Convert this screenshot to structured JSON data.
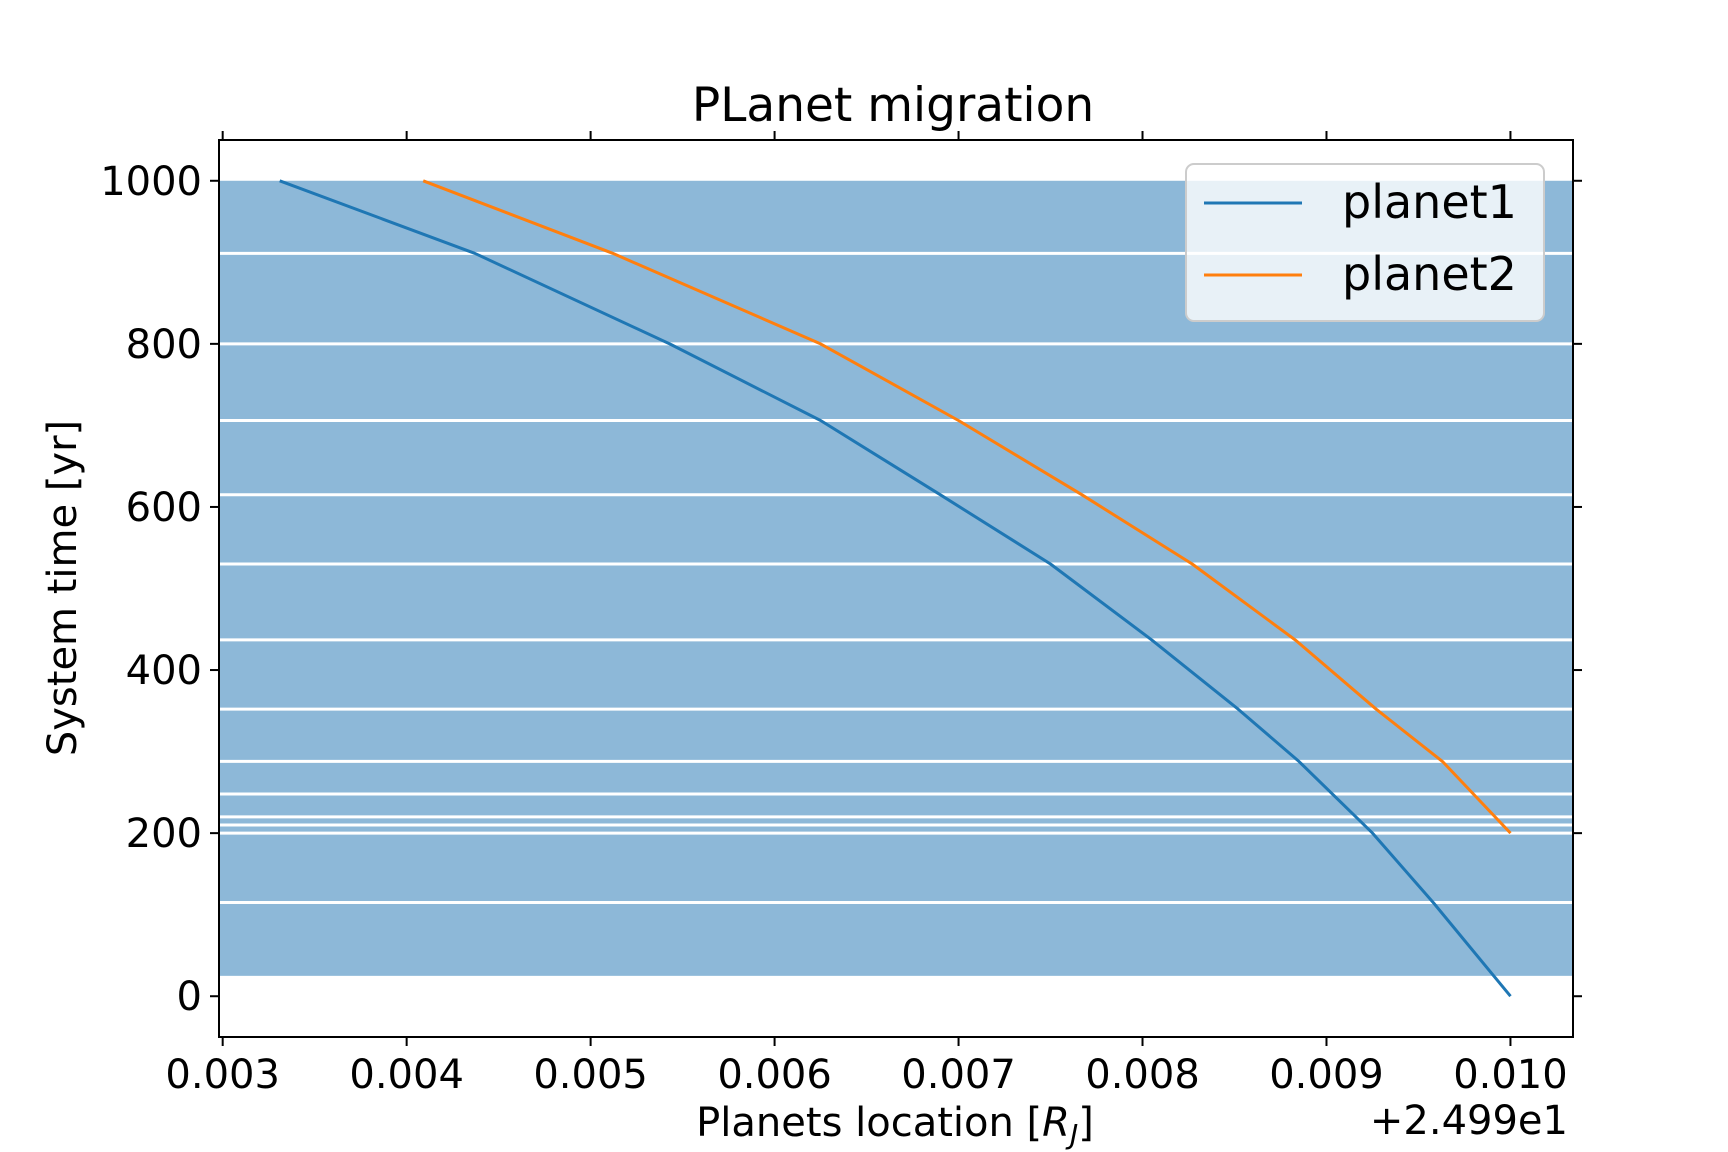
{
  "chart_data": {
    "type": "line",
    "title": "PLanet migration",
    "xlabel": "Planets location [R_J]",
    "ylabel": "System time [yr]",
    "x_offset_label": "+2.499e1",
    "xlim": [
      0.00298,
      0.01034
    ],
    "ylim": [
      -50,
      1050
    ],
    "x_ticks": [
      0.003,
      0.004,
      0.005,
      0.006,
      0.007,
      0.008,
      0.009,
      0.01
    ],
    "x_tick_labels": [
      "0.003",
      "0.004",
      "0.005",
      "0.006",
      "0.007",
      "0.008",
      "0.009",
      "0.010"
    ],
    "y_ticks": [
      0,
      200,
      400,
      600,
      800,
      1000
    ],
    "y_tick_labels": [
      "0",
      "200",
      "400",
      "600",
      "800",
      "1000"
    ],
    "grid": false,
    "legend_position": "top-right",
    "background_band": {
      "color": "#8db8d8",
      "y_from": 25,
      "y_to": 1000
    },
    "band_gaps_y": [
      115,
      200,
      210,
      220,
      248,
      288,
      352,
      437,
      530,
      615,
      706,
      800,
      911
    ],
    "series": [
      {
        "name": "planet1",
        "color": "#1f77b4",
        "x": [
          0.01,
          0.00958,
          0.00925,
          0.00885,
          0.00852,
          0.00805,
          0.0075,
          0.0069,
          0.00625,
          0.00543,
          0.00437,
          0.00331
        ],
        "y": [
          0,
          115,
          200,
          288,
          352,
          437,
          530,
          615,
          706,
          800,
          911,
          1000
        ]
      },
      {
        "name": "planet2",
        "color": "#ff7f0e",
        "x": [
          0.01,
          0.00963,
          0.00927,
          0.00883,
          0.00827,
          0.00767,
          0.007,
          0.00625,
          0.00512,
          0.00409
        ],
        "y": [
          200,
          288,
          352,
          437,
          530,
          615,
          706,
          800,
          911,
          1000
        ]
      }
    ]
  }
}
